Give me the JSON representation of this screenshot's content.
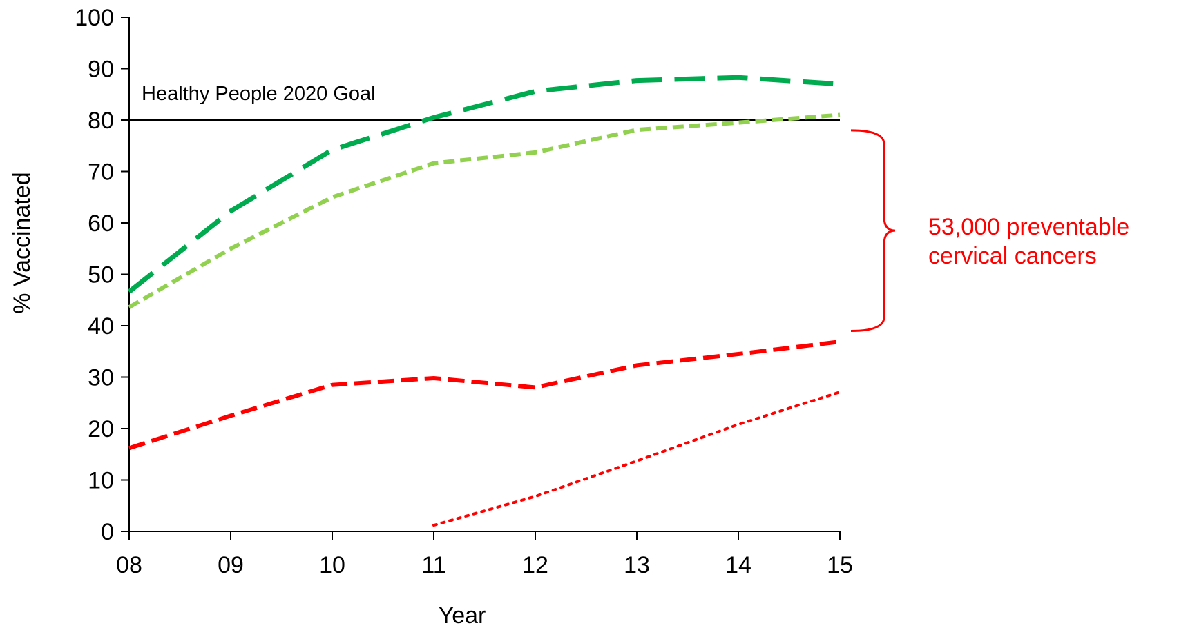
{
  "chart_data": {
    "type": "line",
    "title": "",
    "xlabel": "Year",
    "ylabel": "% Vaccinated",
    "categories": [
      "08",
      "09",
      "10",
      "11",
      "12",
      "13",
      "14",
      "15"
    ],
    "ylim": [
      0,
      100
    ],
    "yticks": [
      0,
      10,
      20,
      30,
      40,
      50,
      60,
      70,
      80,
      90,
      100
    ],
    "grid": false,
    "legend": "none",
    "reference_line": {
      "label": "Healthy People 2020 Goal",
      "value": 80,
      "color": "#000000"
    },
    "series": [
      {
        "dash": "long-dash",
        "color": "#00AA4F",
        "values": [
          46.6,
          62.3,
          74.2,
          80.5,
          85.6,
          87.7,
          88.3,
          87.0
        ]
      },
      {
        "dash": "short-dash",
        "color": "#92D050",
        "values": [
          43.6,
          55.0,
          65.0,
          71.6,
          73.7,
          78.1,
          79.5,
          81.0
        ]
      },
      {
        "dash": "medium-dash",
        "color": "#FF0000",
        "values": [
          16.2,
          22.5,
          28.5,
          29.8,
          28.0,
          32.3,
          34.5,
          36.9
        ]
      },
      {
        "dash": "dotted",
        "color": "#FF0000",
        "values": [
          null,
          null,
          null,
          1.2,
          6.8,
          13.7,
          20.8,
          27.1
        ]
      }
    ],
    "annotation": {
      "lines": [
        "53,000 preventable",
        "cervical cancers"
      ],
      "color": "#FF0000",
      "bracket_from": 78,
      "bracket_to": 39
    }
  }
}
